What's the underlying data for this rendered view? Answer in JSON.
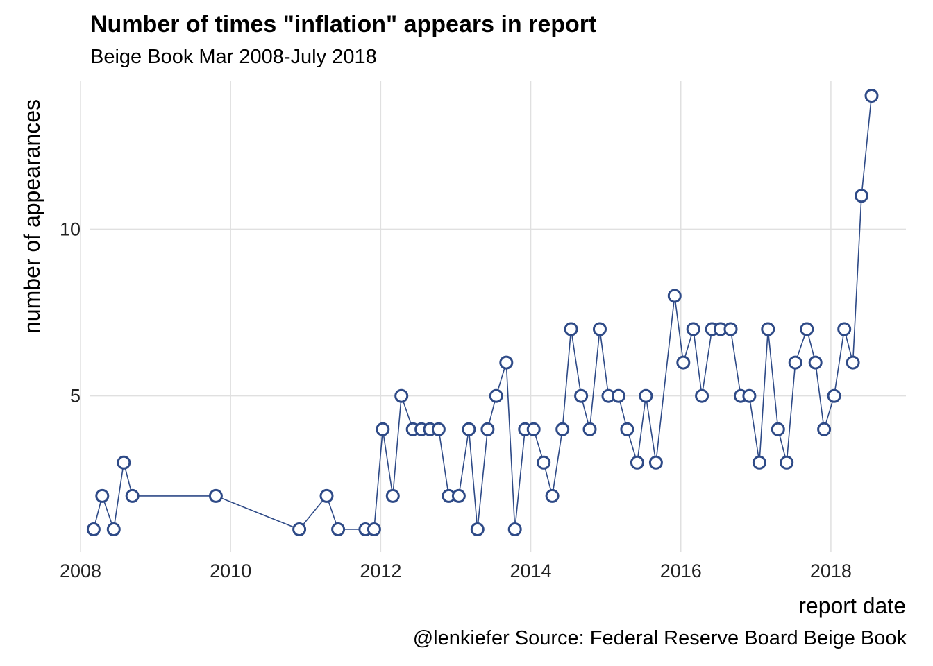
{
  "chart_data": {
    "type": "line",
    "title": "Number of times \"inflation\" appears in report",
    "subtitle": "Beige Book Mar 2008-July 2018",
    "xlabel": "report date",
    "ylabel": "number of appearances",
    "caption": "@lenkiefer Source: Federal Reserve Board Beige Book",
    "x_ticks": [
      "2008",
      "2010",
      "2012",
      "2014",
      "2016",
      "2018"
    ],
    "y_ticks": [
      "5",
      "10"
    ],
    "xlim": [
      "2008-01-01",
      "2019-01-01"
    ],
    "ylim": [
      0.5,
      14.5
    ],
    "grid": "major",
    "legend": "none",
    "line_color": "#2e4a87",
    "marker_fill": "#ffffff",
    "grid_color": "#e0e0e0",
    "series": [
      {
        "x": [
          "2008-03-05",
          "2008-04-16",
          "2008-06-11",
          "2008-07-30",
          "2008-09-10",
          "2009-10-21",
          "2010-12-01",
          "2011-04-13",
          "2011-06-08",
          "2011-10-19",
          "2011-11-30",
          "2012-01-11",
          "2012-02-29",
          "2012-04-11",
          "2012-06-06",
          "2012-07-18",
          "2012-08-29",
          "2012-10-10",
          "2012-11-28",
          "2013-01-16",
          "2013-03-06",
          "2013-04-17",
          "2013-06-05",
          "2013-07-17",
          "2013-09-04",
          "2013-10-16",
          "2013-12-04",
          "2014-01-15",
          "2014-03-05",
          "2014-04-16",
          "2014-06-04",
          "2014-07-16",
          "2014-09-03",
          "2014-10-15",
          "2014-12-03",
          "2015-01-14",
          "2015-03-04",
          "2015-04-15",
          "2015-06-03",
          "2015-07-15",
          "2015-09-02",
          "2015-12-02",
          "2016-01-13",
          "2016-03-02",
          "2016-04-13",
          "2016-06-01",
          "2016-07-13",
          "2016-08-31",
          "2016-10-19",
          "2016-11-30",
          "2017-01-18",
          "2017-03-01",
          "2017-04-19",
          "2017-05-31",
          "2017-07-12",
          "2017-09-06",
          "2017-10-18",
          "2017-11-29",
          "2018-01-17",
          "2018-03-07",
          "2018-04-18",
          "2018-05-30",
          "2018-07-18"
        ],
        "y": [
          1,
          2,
          1,
          3,
          2,
          2,
          1,
          2,
          1,
          1,
          1,
          4,
          2,
          5,
          4,
          4,
          4,
          4,
          2,
          2,
          4,
          1,
          4,
          5,
          6,
          1,
          4,
          4,
          3,
          2,
          4,
          7,
          5,
          4,
          7,
          5,
          5,
          4,
          3,
          5,
          3,
          8,
          6,
          7,
          5,
          7,
          7,
          7,
          5,
          5,
          3,
          7,
          4,
          3,
          6,
          7,
          6,
          4,
          5,
          7,
          6,
          11,
          14
        ]
      }
    ]
  }
}
